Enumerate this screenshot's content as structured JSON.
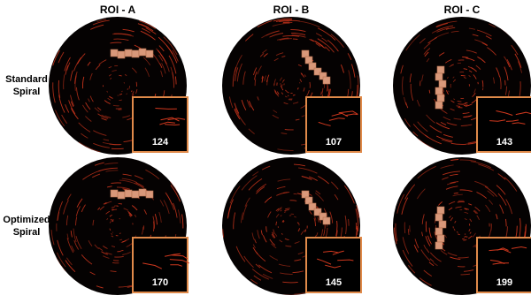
{
  "columns": [
    "ROI - A",
    "ROI - B",
    "ROI - C"
  ],
  "rows": [
    {
      "label": [
        "Standard",
        "Spiral"
      ],
      "values": [
        124,
        107,
        143
      ]
    },
    {
      "label": [
        "Optimized",
        "Spiral"
      ],
      "values": [
        170,
        145,
        199
      ]
    }
  ]
}
